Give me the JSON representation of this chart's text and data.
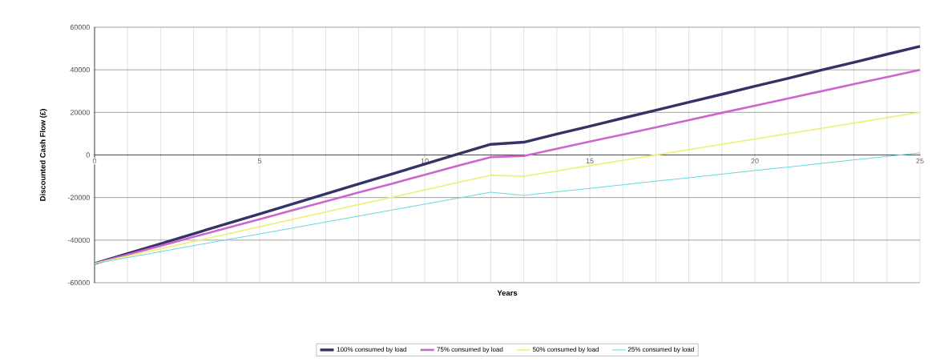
{
  "chart_data": {
    "type": "line",
    "xlabel": "Years",
    "ylabel": "Discounted Cash Flow (£)",
    "x": [
      0,
      1,
      2,
      3,
      4,
      5,
      6,
      7,
      8,
      9,
      10,
      11,
      12,
      13,
      14,
      15,
      16,
      17,
      18,
      19,
      20,
      21,
      22,
      23,
      24,
      25
    ],
    "series": [
      {
        "name": "100% consumed by load",
        "color": "#333366",
        "values": [
          -51000,
          -46300,
          -41700,
          -37000,
          -32300,
          -27700,
          -23000,
          -18300,
          -13600,
          -9000,
          -4300,
          400,
          5000,
          6000,
          9800,
          13500,
          17300,
          21000,
          24800,
          28500,
          32300,
          36000,
          39800,
          43500,
          47300,
          51000
        ]
      },
      {
        "name": "75% consumed by load",
        "color": "#cc66cc",
        "values": [
          -51000,
          -46800,
          -42700,
          -38500,
          -34300,
          -30200,
          -26000,
          -21800,
          -17600,
          -13500,
          -9300,
          -5100,
          -1000,
          -500,
          2900,
          6300,
          9600,
          13000,
          16400,
          19800,
          23100,
          26500,
          29900,
          33300,
          36600,
          40000
        ]
      },
      {
        "name": "50% consumed by load",
        "color": "#f0f080",
        "values": [
          -51000,
          -47500,
          -44100,
          -40600,
          -37200,
          -33700,
          -30200,
          -26800,
          -23300,
          -19900,
          -16400,
          -12900,
          -9500,
          -10000,
          -7500,
          -5000,
          -2500,
          0,
          2500,
          5000,
          7500,
          10000,
          12500,
          15000,
          17500,
          20000
        ]
      },
      {
        "name": "25% consumed by load",
        "color": "#66d8d8",
        "values": [
          -51000,
          -48200,
          -45400,
          -42600,
          -39800,
          -37100,
          -34300,
          -31500,
          -28700,
          -25900,
          -23100,
          -20300,
          -17500,
          -19000,
          -17300,
          -15700,
          -14000,
          -12300,
          -10700,
          -9000,
          -7300,
          -5700,
          -4000,
          -2300,
          -700,
          1000
        ]
      }
    ],
    "xlim": [
      0,
      25
    ],
    "xticks": [
      0,
      5,
      10,
      15,
      20,
      25
    ],
    "ylim": [
      -60000,
      60000
    ],
    "yticks": [
      -60000,
      -40000,
      -20000,
      0,
      20000,
      40000,
      60000
    ],
    "grid": true,
    "legend": "bottom",
    "marker": "none",
    "line_style": "solid"
  }
}
